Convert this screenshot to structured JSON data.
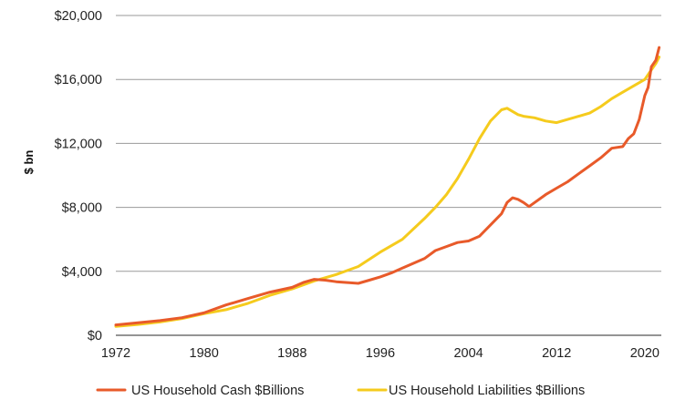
{
  "chart_data": {
    "type": "line",
    "title": "",
    "xlabel": "",
    "ylabel": "$ bn",
    "xlim": [
      1972,
      2021.5
    ],
    "ylim": [
      0,
      20000
    ],
    "grid": true,
    "legend_position": "bottom",
    "x_ticks": [
      1972,
      1980,
      1988,
      1996,
      2004,
      2012,
      2020
    ],
    "x_tick_labels": [
      "1972",
      "1980",
      "1988",
      "1996",
      "2004",
      "2012",
      "2020"
    ],
    "y_ticks": [
      0,
      4000,
      8000,
      12000,
      16000,
      20000
    ],
    "y_tick_labels": [
      "$0",
      "$4,000",
      "$8,000",
      "$12,000",
      "$16,000",
      "$20,000"
    ],
    "series": [
      {
        "name": "US Household Cash $Billions",
        "color": "#e85a2a",
        "x": [
          1972,
          1974,
          1976,
          1978,
          1980,
          1982,
          1984,
          1986,
          1988,
          1989,
          1990,
          1991,
          1992,
          1993,
          1994,
          1995,
          1996,
          1997,
          1998,
          1999,
          2000,
          2001,
          2002,
          2003,
          2004,
          2005,
          2006,
          2007,
          2007.5,
          2008,
          2008.5,
          2009,
          2009.5,
          2010,
          2011,
          2012,
          2013,
          2014,
          2015,
          2016,
          2017,
          2018,
          2018.5,
          2019,
          2019.5,
          2020,
          2020.3,
          2020.6,
          2021,
          2021.3
        ],
        "values": [
          650,
          780,
          920,
          1100,
          1400,
          1900,
          2300,
          2700,
          3000,
          3300,
          3500,
          3450,
          3350,
          3300,
          3250,
          3450,
          3650,
          3900,
          4200,
          4500,
          4800,
          5300,
          5550,
          5800,
          5900,
          6200,
          6900,
          7600,
          8300,
          8600,
          8500,
          8300,
          8050,
          8300,
          8800,
          9200,
          9600,
          10100,
          10600,
          11100,
          11700,
          11800,
          12300,
          12600,
          13500,
          15000,
          15500,
          16800,
          17200,
          18000
        ]
      },
      {
        "name": "US Household Liabilities $Billions",
        "color": "#f5cb1d",
        "x": [
          1972,
          1974,
          1976,
          1978,
          1980,
          1982,
          1984,
          1986,
          1988,
          1990,
          1992,
          1994,
          1996,
          1998,
          2000,
          2001,
          2002,
          2003,
          2004,
          2005,
          2006,
          2007,
          2007.5,
          2008,
          2008.5,
          2009,
          2010,
          2011,
          2012,
          2013,
          2014,
          2015,
          2016,
          2017,
          2018,
          2019,
          2020,
          2020.5,
          2021,
          2021.3
        ],
        "values": [
          550,
          680,
          830,
          1050,
          1350,
          1600,
          2000,
          2500,
          2900,
          3400,
          3800,
          4300,
          5200,
          6000,
          7300,
          8000,
          8800,
          9800,
          11000,
          12300,
          13400,
          14100,
          14200,
          14000,
          13800,
          13700,
          13600,
          13400,
          13300,
          13500,
          13700,
          13900,
          14300,
          14800,
          15200,
          15600,
          16000,
          16500,
          17000,
          17400
        ]
      }
    ]
  }
}
